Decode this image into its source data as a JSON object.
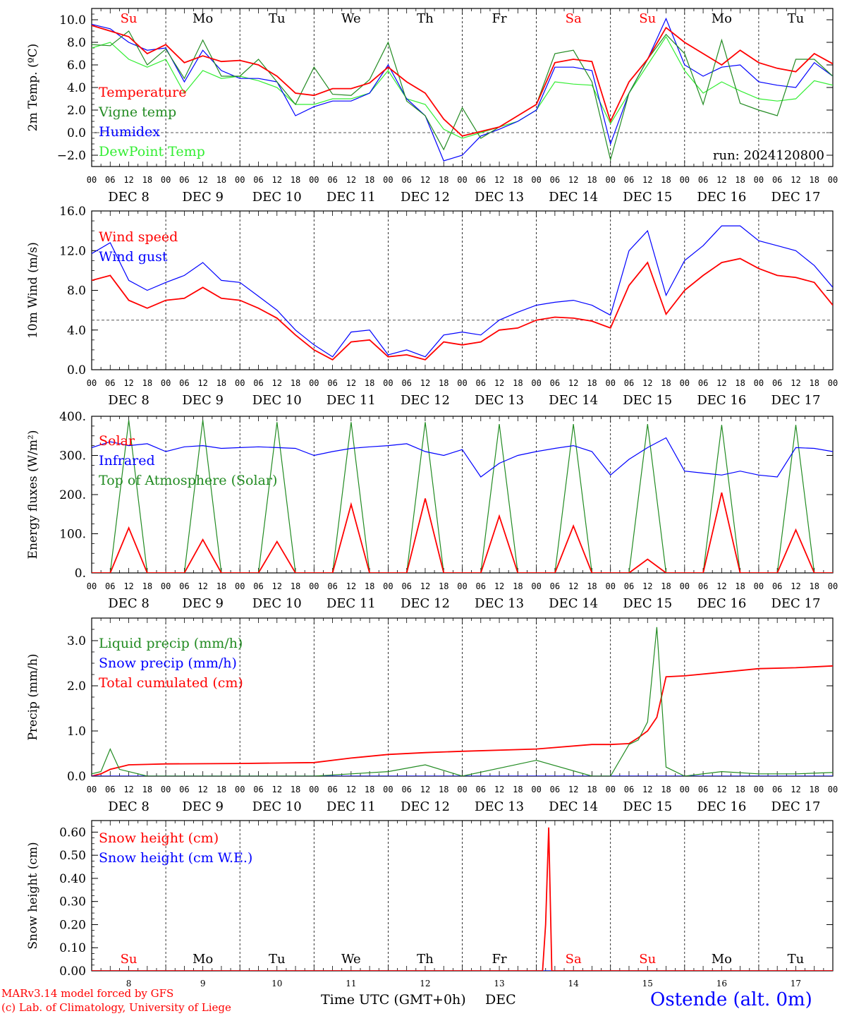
{
  "footer": {
    "model": "MARv3.14 model forced by GFS",
    "copyright": "(c) Lab. of Climatology, University of Liege",
    "xlabel": "Time UTC (GMT+0h)",
    "xlabel_month": "DEC",
    "station": "Ostende (alt. 0m)"
  },
  "colors": {
    "red": "#ff0000",
    "green": "#228b22",
    "blue": "#0000ff",
    "light_green": "#33ee33",
    "weekend": "#ff0000",
    "weekday": "#000000"
  },
  "days": [
    {
      "abbr": "Su",
      "date": "DEC  8",
      "num": "8",
      "weekend": true
    },
    {
      "abbr": "Mo",
      "date": "DEC  9",
      "num": "9",
      "weekend": false
    },
    {
      "abbr": "Tu",
      "date": "DEC 10",
      "num": "10",
      "weekend": false
    },
    {
      "abbr": "We",
      "date": "DEC 11",
      "num": "11",
      "weekend": false
    },
    {
      "abbr": "Th",
      "date": "DEC 12",
      "num": "12",
      "weekend": false
    },
    {
      "abbr": "Fr",
      "date": "DEC 13",
      "num": "13",
      "weekend": false
    },
    {
      "abbr": "Sa",
      "date": "DEC 14",
      "num": "14",
      "weekend": true
    },
    {
      "abbr": "Su",
      "date": "DEC 15",
      "num": "15",
      "weekend": true
    },
    {
      "abbr": "Mo",
      "date": "DEC 16",
      "num": "16",
      "weekend": false
    },
    {
      "abbr": "Tu",
      "date": "DEC 17",
      "num": "17",
      "weekend": false
    }
  ],
  "hour_labels": [
    "00",
    "06",
    "12",
    "18"
  ],
  "chart_data": [
    {
      "type": "line",
      "ylabel": "2m Temp. (ºC)",
      "ylim": [
        -3.0,
        11.0
      ],
      "yticks": [
        -2.0,
        0.0,
        2.0,
        4.0,
        6.0,
        8.0,
        10.0
      ],
      "ytick_labels": [
        "−2.0",
        "0.0",
        "2.0",
        "4.0",
        "6.0",
        "8.0",
        "10.0"
      ],
      "hline": 0.0,
      "annotation": "run: 2024120800",
      "x": [
        0,
        6,
        12,
        18,
        24,
        30,
        36,
        42,
        48,
        54,
        60,
        66,
        72,
        78,
        84,
        90,
        96,
        102,
        108,
        114,
        120,
        126,
        132,
        138,
        144,
        150,
        156,
        162,
        168,
        174,
        180,
        186,
        192,
        198,
        204,
        210,
        216,
        222,
        228,
        234,
        240
      ],
      "series": [
        {
          "name": "Temperature",
          "color": "red",
          "values": [
            9.5,
            9.0,
            8.5,
            7.0,
            7.8,
            6.2,
            6.8,
            6.3,
            6.4,
            6.0,
            5.0,
            3.5,
            3.3,
            3.9,
            3.9,
            4.4,
            5.8,
            4.5,
            3.5,
            1.2,
            -0.3,
            0.1,
            0.5,
            1.5,
            2.5,
            6.2,
            6.5,
            6.3,
            1.0,
            4.5,
            6.5,
            9.3,
            8.0,
            7.0,
            6.0,
            7.3,
            6.2,
            5.7,
            5.4,
            7.0,
            6.1
          ]
        },
        {
          "name": "Vigne temp",
          "color": "green",
          "values": [
            7.8,
            7.7,
            9.0,
            6.0,
            7.4,
            4.8,
            8.2,
            5.0,
            5.0,
            6.5,
            4.5,
            2.5,
            5.8,
            3.4,
            3.3,
            4.7,
            8.0,
            2.8,
            1.5,
            -1.5,
            2.2,
            -0.5,
            0.5,
            1.5,
            2.5,
            7.0,
            7.3,
            4.5,
            -2.4,
            3.5,
            6.5,
            8.7,
            7.0,
            2.5,
            8.2,
            2.6,
            2.0,
            1.5,
            6.5,
            6.5,
            5.0
          ]
        },
        {
          "name": "Humidex",
          "color": "blue",
          "values": [
            9.6,
            9.2,
            8.0,
            7.3,
            7.5,
            4.5,
            7.3,
            5.5,
            4.8,
            4.8,
            4.5,
            1.5,
            2.3,
            2.8,
            2.8,
            3.5,
            6.0,
            3.0,
            1.5,
            -2.5,
            -2.0,
            -0.3,
            0.3,
            1.0,
            2.0,
            5.8,
            5.8,
            5.5,
            -1.0,
            3.5,
            6.5,
            10.1,
            6.0,
            5.0,
            5.8,
            6.0,
            4.5,
            4.2,
            4.0,
            6.2,
            5.0
          ]
        },
        {
          "name": "DewPoint Temp",
          "color": "light_green",
          "values": [
            7.5,
            8.0,
            6.5,
            5.8,
            6.5,
            3.5,
            5.5,
            4.8,
            5.0,
            4.6,
            4.0,
            2.5,
            2.5,
            3.0,
            3.0,
            3.5,
            5.5,
            3.0,
            2.5,
            0.3,
            -0.5,
            0.0,
            0.5,
            1.0,
            2.0,
            4.5,
            4.3,
            4.2,
            0.8,
            3.5,
            6.0,
            8.5,
            5.5,
            3.5,
            4.5,
            3.7,
            3.0,
            2.8,
            3.0,
            4.6,
            4.2
          ]
        }
      ]
    },
    {
      "type": "line",
      "ylabel": "10m Wind (m/s)",
      "ylim": [
        0,
        16
      ],
      "yticks": [
        0.0,
        4.0,
        8.0,
        12.0,
        16.0
      ],
      "ytick_labels": [
        "0.0",
        "4.0",
        "8.0",
        "12.0",
        "16.0"
      ],
      "hline": 5.0,
      "x": [
        0,
        6,
        12,
        18,
        24,
        30,
        36,
        42,
        48,
        54,
        60,
        66,
        72,
        78,
        84,
        90,
        96,
        102,
        108,
        114,
        120,
        126,
        132,
        138,
        144,
        150,
        156,
        162,
        168,
        174,
        180,
        186,
        192,
        198,
        204,
        210,
        216,
        222,
        228,
        234,
        240
      ],
      "series": [
        {
          "name": "Wind speed",
          "color": "red",
          "values": [
            9.0,
            9.5,
            7.0,
            6.2,
            7.0,
            7.2,
            8.3,
            7.2,
            7.0,
            6.2,
            5.2,
            3.5,
            2.0,
            1.0,
            2.8,
            3.0,
            1.3,
            1.5,
            1.0,
            2.8,
            2.5,
            2.8,
            4.0,
            4.2,
            5.0,
            5.3,
            5.2,
            4.9,
            4.2,
            8.5,
            10.8,
            5.6,
            8.0,
            9.5,
            10.8,
            11.2,
            10.2,
            9.5,
            9.3,
            8.8,
            6.5
          ]
        },
        {
          "name": "Wind gust",
          "color": "blue",
          "values": [
            11.7,
            12.8,
            9.0,
            8.0,
            8.8,
            9.5,
            10.8,
            9.0,
            8.8,
            7.4,
            6.0,
            4.0,
            2.5,
            1.3,
            3.8,
            4.0,
            1.5,
            2.0,
            1.3,
            3.5,
            3.8,
            3.5,
            5.0,
            5.8,
            6.5,
            6.8,
            7.0,
            6.5,
            5.5,
            12.0,
            14.0,
            7.5,
            11.0,
            12.5,
            14.5,
            14.5,
            13.0,
            12.5,
            12.0,
            10.5,
            8.3
          ]
        }
      ]
    },
    {
      "type": "line",
      "ylabel": "Energy fluxes (W/m²)",
      "ylim": [
        0,
        400
      ],
      "yticks": [
        0,
        100,
        200,
        300,
        400
      ],
      "ytick_labels": [
        "0.",
        "100.",
        "200.",
        "300.",
        "400."
      ],
      "x": [
        0,
        6,
        12,
        18,
        24,
        30,
        36,
        42,
        48,
        54,
        60,
        66,
        72,
        78,
        84,
        90,
        96,
        102,
        108,
        114,
        120,
        126,
        132,
        138,
        144,
        150,
        156,
        162,
        168,
        174,
        180,
        186,
        192,
        198,
        204,
        210,
        216,
        222,
        228,
        234,
        240
      ],
      "series": [
        {
          "name": "Solar",
          "color": "red",
          "values": [
            0,
            0,
            115,
            0,
            0,
            0,
            85,
            0,
            0,
            0,
            80,
            0,
            0,
            0,
            175,
            0,
            0,
            0,
            190,
            0,
            0,
            0,
            145,
            0,
            0,
            0,
            120,
            0,
            0,
            0,
            35,
            0,
            0,
            0,
            205,
            0,
            0,
            0,
            110,
            0,
            0
          ]
        },
        {
          "name": "Infrared",
          "color": "blue",
          "values": [
            320,
            335,
            325,
            330,
            310,
            322,
            325,
            318,
            320,
            322,
            320,
            318,
            300,
            310,
            318,
            322,
            325,
            330,
            310,
            300,
            315,
            245,
            280,
            300,
            310,
            318,
            325,
            310,
            250,
            290,
            320,
            345,
            260,
            255,
            250,
            260,
            250,
            245,
            320,
            318,
            310
          ]
        },
        {
          "name": "Top of Atmosphere (Solar)",
          "color": "green",
          "values": [
            0,
            0,
            390,
            0,
            0,
            0,
            390,
            0,
            0,
            0,
            385,
            0,
            0,
            0,
            385,
            0,
            0,
            0,
            385,
            0,
            0,
            0,
            380,
            0,
            0,
            0,
            380,
            0,
            0,
            0,
            380,
            0,
            0,
            0,
            378,
            0,
            0,
            0,
            378,
            0,
            0
          ]
        }
      ]
    },
    {
      "type": "line",
      "ylabel": "Precip (mm/h)",
      "ylim": [
        0,
        3.5
      ],
      "yticks": [
        0.0,
        1.0,
        2.0,
        3.0
      ],
      "ytick_labels": [
        "0.0",
        "1.0",
        "2.0",
        "3.0"
      ],
      "x": [
        0,
        3,
        6,
        9,
        12,
        18,
        24,
        48,
        72,
        84,
        96,
        108,
        120,
        144,
        162,
        168,
        174,
        177,
        180,
        183,
        186,
        192,
        204,
        216,
        228,
        240
      ],
      "series": [
        {
          "name": "Liquid precip (mm/h)",
          "color": "green",
          "values": [
            0.05,
            0.1,
            0.6,
            0.15,
            0.1,
            0.0,
            0.0,
            0.0,
            0.0,
            0.05,
            0.1,
            0.25,
            0.0,
            0.35,
            0.0,
            0.0,
            0.7,
            0.8,
            1.2,
            3.3,
            0.2,
            0.0,
            0.1,
            0.05,
            0.05,
            0.08
          ]
        },
        {
          "name": "Snow precip (mm/h)",
          "color": "blue",
          "values": [
            0,
            0,
            0,
            0,
            0,
            0,
            0,
            0,
            0,
            0,
            0,
            0,
            0,
            0,
            0,
            0,
            0,
            0,
            0,
            0,
            0,
            0,
            0,
            0,
            0,
            0
          ]
        },
        {
          "name": "Total cumulated (cm)",
          "color": "red",
          "values": [
            0.0,
            0.05,
            0.15,
            0.2,
            0.25,
            0.26,
            0.27,
            0.28,
            0.3,
            0.4,
            0.48,
            0.52,
            0.55,
            0.6,
            0.7,
            0.7,
            0.72,
            0.85,
            1.0,
            1.3,
            2.2,
            2.22,
            2.3,
            2.38,
            2.4,
            2.44
          ]
        }
      ]
    },
    {
      "type": "line",
      "ylabel": "Snow height (cm)",
      "ylim": [
        0,
        0.65
      ],
      "yticks": [
        0.0,
        0.1,
        0.2,
        0.3,
        0.4,
        0.5,
        0.6
      ],
      "ytick_labels": [
        "0.00",
        "0.10",
        "0.20",
        "0.30",
        "0.40",
        "0.50",
        "0.60"
      ],
      "x": [
        0,
        146,
        147,
        148,
        149,
        240
      ],
      "series": [
        {
          "name": "Snow height (cm)",
          "color": "red",
          "values": [
            0,
            0,
            0.2,
            0.62,
            0,
            0
          ]
        },
        {
          "name": "Snow height (cm W.E.)",
          "color": "blue",
          "values": [
            0,
            0,
            0,
            0,
            0,
            0
          ]
        }
      ]
    }
  ]
}
